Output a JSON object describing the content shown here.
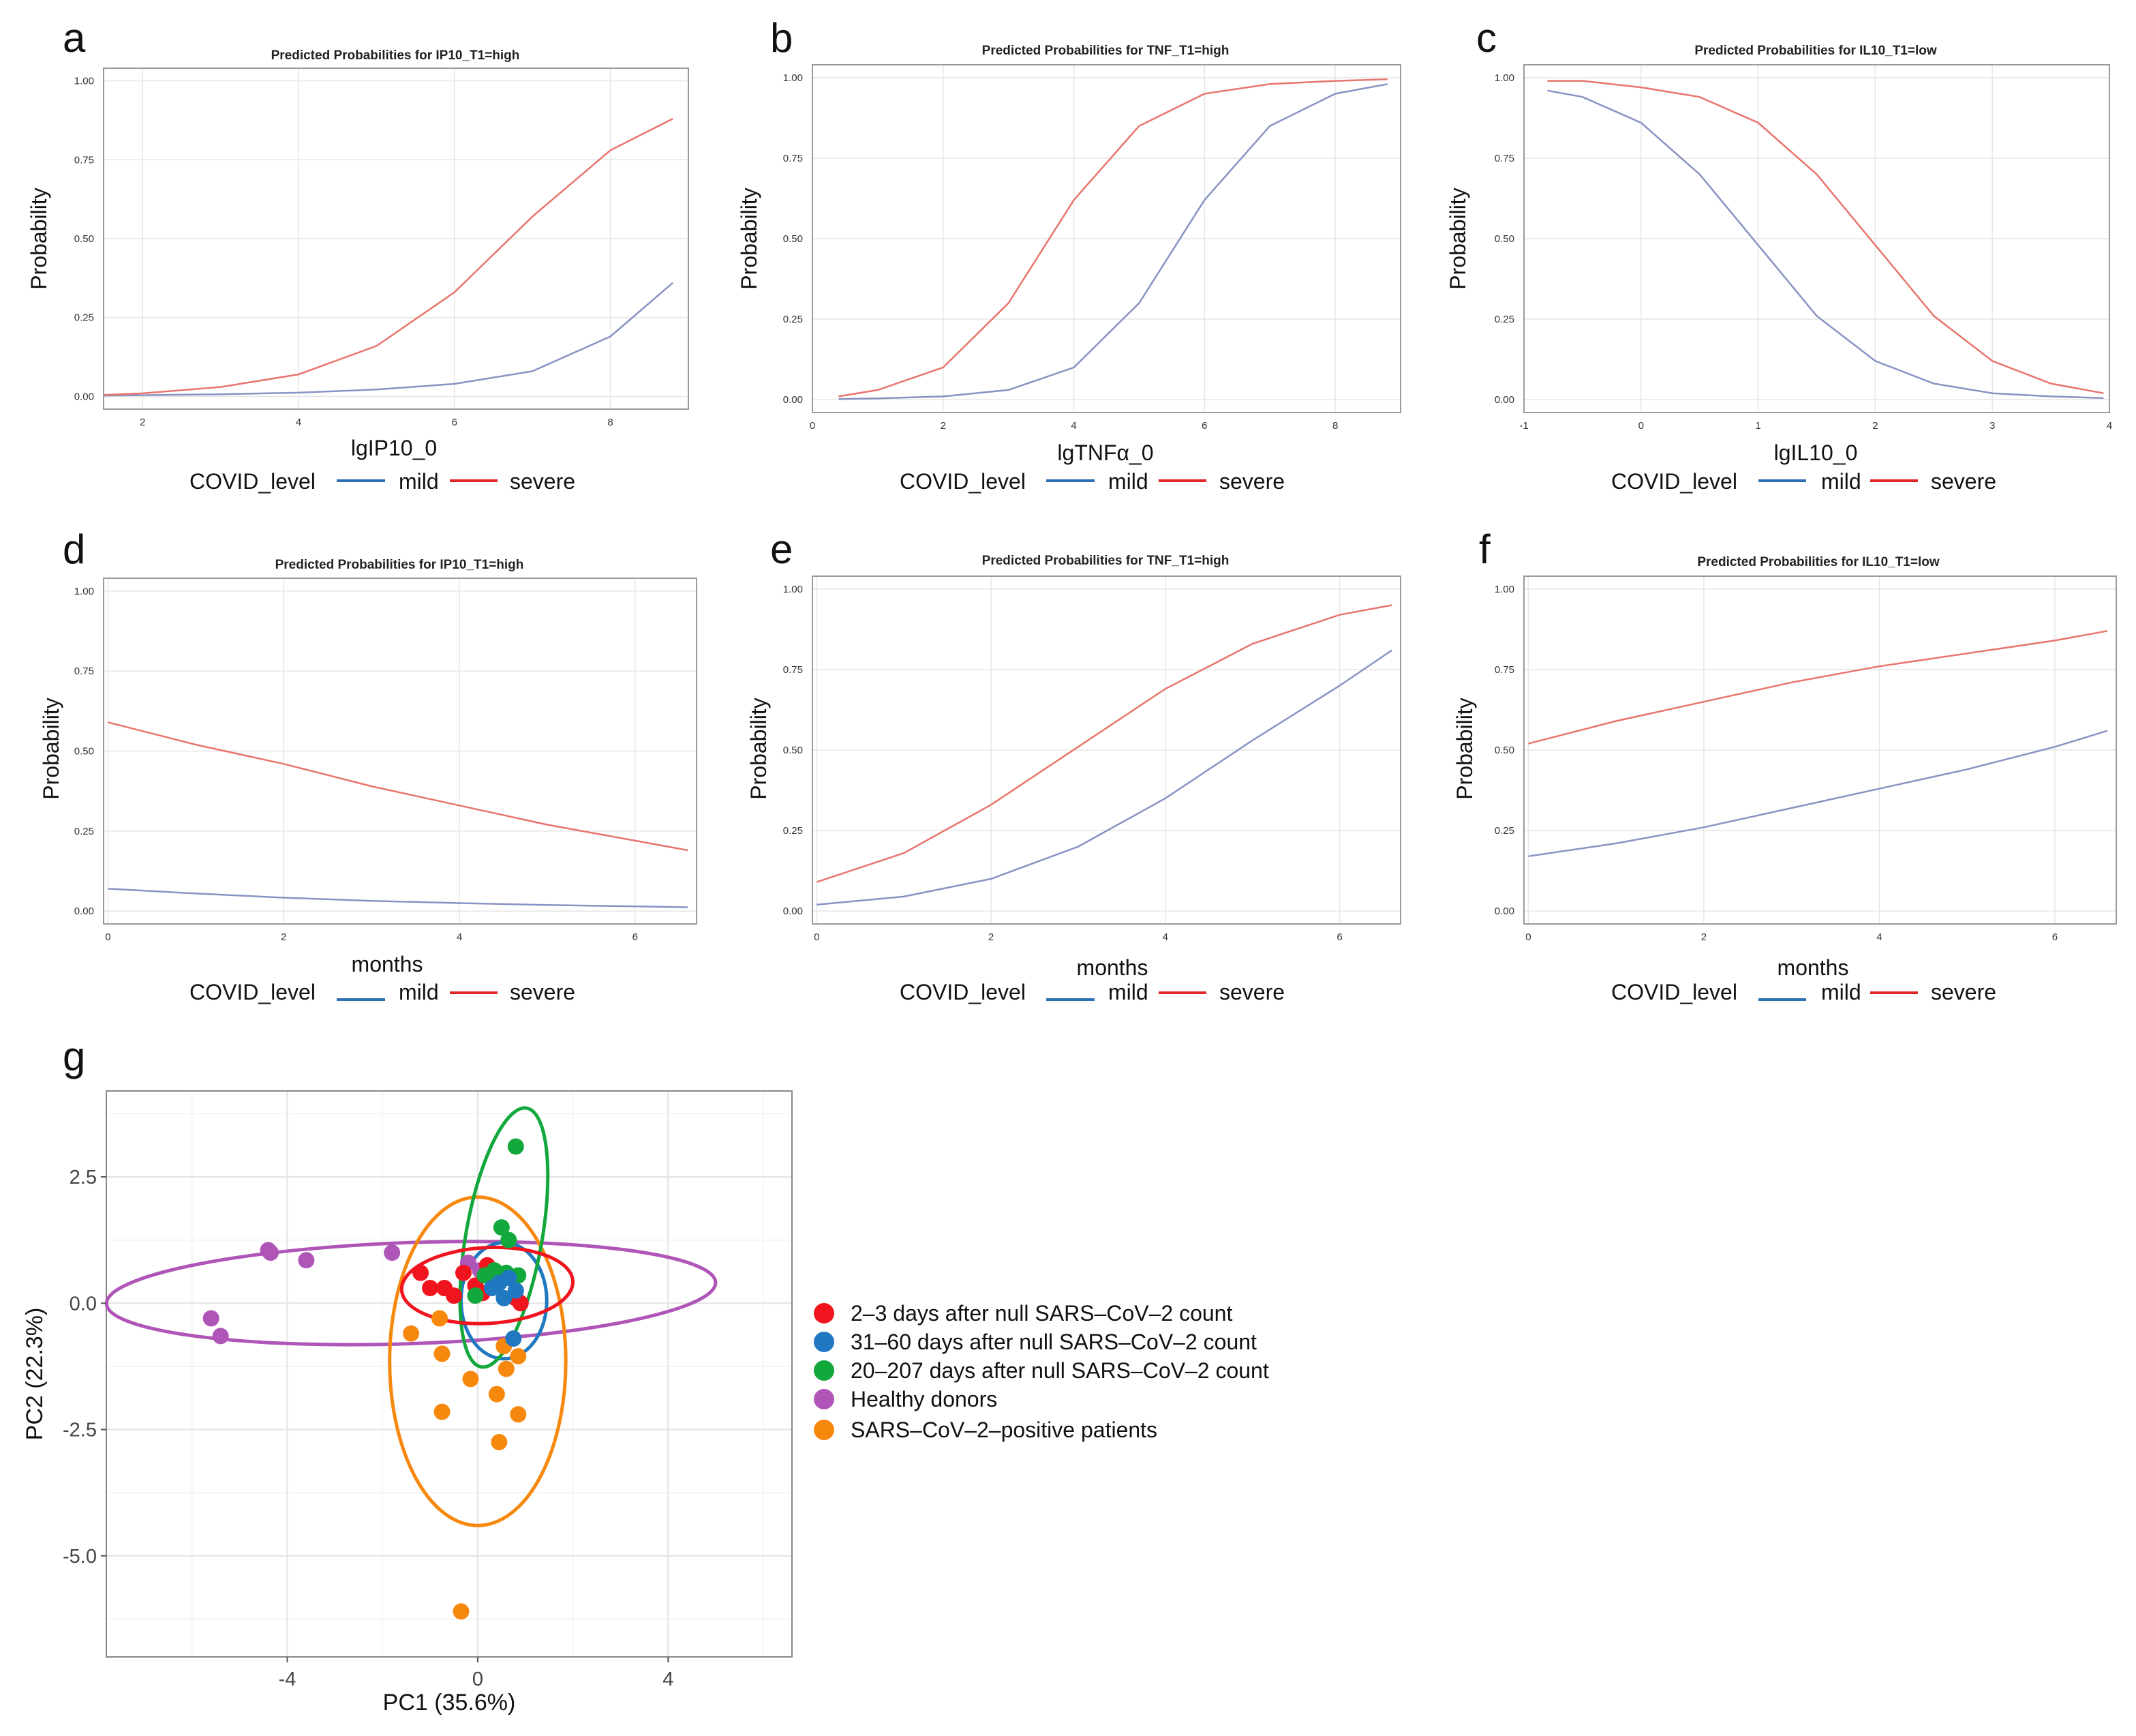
{
  "colors": {
    "mild": "#8893c4",
    "severe": "#e8756c",
    "legend_mild": "#2f6fb3",
    "legend_severe": "#e3262a",
    "grid": "#e6e6e6",
    "frame": "#9a9a9a"
  },
  "legend": {
    "title": "COVID_level",
    "mild": "mild",
    "severe": "severe"
  },
  "panels": [
    {
      "label": "a",
      "title": "Predicted Probabilities for IP10_T1=high",
      "xlabel": "lgIP10_0",
      "ylabel": "Probability",
      "yticks": [
        "0.00",
        "0.25",
        "0.50",
        "0.75",
        "1.00"
      ],
      "xticks": [
        "2",
        "4",
        "6",
        "8"
      ]
    },
    {
      "label": "b",
      "title": "Predicted Probabilities for TNF_T1=high",
      "xlabel": "lgTNFα_0",
      "ylabel": "Probability",
      "yticks": [
        "0.00",
        "0.25",
        "0.50",
        "0.75",
        "1.00"
      ],
      "xticks": [
        "0",
        "2",
        "4",
        "6",
        "8"
      ]
    },
    {
      "label": "c",
      "title": "Predicted Probabilities for IL10_T1=low",
      "xlabel": "lgIL10_0",
      "ylabel": "Probability",
      "yticks": [
        "0.00",
        "0.25",
        "0.50",
        "0.75",
        "1.00"
      ],
      "xticks": [
        "-1",
        "0",
        "1",
        "2",
        "3",
        "4"
      ]
    },
    {
      "label": "d",
      "title": "Predicted Probabilities for IP10_T1=high",
      "xlabel": "months",
      "ylabel": "Probability",
      "yticks": [
        "0.00",
        "0.25",
        "0.50",
        "0.75",
        "1.00"
      ],
      "xticks": [
        "0",
        "2",
        "4",
        "6"
      ]
    },
    {
      "label": "e",
      "title": "Predicted Probabilities for TNF_T1=high",
      "xlabel": "months",
      "ylabel": "Probability",
      "yticks": [
        "0.00",
        "0.25",
        "0.50",
        "0.75",
        "1.00"
      ],
      "xticks": [
        "0",
        "2",
        "4",
        "6"
      ]
    },
    {
      "label": "f",
      "title": "Predicted Probabilities for IL10_T1=low",
      "xlabel": "months",
      "ylabel": "Probability",
      "yticks": [
        "0.00",
        "0.25",
        "0.50",
        "0.75",
        "1.00"
      ],
      "xticks": [
        "0",
        "2",
        "4",
        "6"
      ]
    }
  ],
  "pca": {
    "label": "g",
    "xlabel": "PC1 (35.6%)",
    "ylabel": "PC2 (22.3%)",
    "xticks": [
      "-4",
      "0",
      "4"
    ],
    "yticks": [
      "2.5",
      "0.0",
      "-2.5",
      "-5.0"
    ],
    "legend": [
      "2–3  days  after  null  SARS–CoV–2  count",
      "31–60  days  after  null  SARS–CoV–2  count",
      "20–207  days  after  null  SARS–CoV–2  count",
      "Healthy  donors",
      "SARS–CoV–2–positive    patients"
    ],
    "colors": [
      "#f0141e",
      "#1f78c0",
      "#12a83c",
      "#b055b8",
      "#f7880e"
    ]
  },
  "chart_data": [
    {
      "type": "line",
      "title": "Predicted Probabilities for IP10_T1=high",
      "xlabel": "lgIP10_0",
      "ylabel": "Probability",
      "xlim": [
        1.5,
        9.0
      ],
      "ylim": [
        -0.04,
        1.04
      ],
      "series": [
        {
          "name": "mild",
          "x": [
            1.5,
            2,
            3,
            4,
            5,
            6,
            7,
            8,
            8.8
          ],
          "values": [
            0.003,
            0.004,
            0.007,
            0.012,
            0.022,
            0.04,
            0.08,
            0.19,
            0.36
          ]
        },
        {
          "name": "severe",
          "x": [
            1.5,
            2,
            3,
            4,
            5,
            6,
            7,
            8,
            8.8
          ],
          "values": [
            0.005,
            0.01,
            0.03,
            0.07,
            0.16,
            0.33,
            0.57,
            0.78,
            0.88
          ]
        }
      ]
    },
    {
      "type": "line",
      "title": "Predicted Probabilities for TNF_T1=high",
      "xlabel": "lgTNFα_0",
      "ylabel": "Probability",
      "xlim": [
        0,
        9.0
      ],
      "ylim": [
        -0.04,
        1.04
      ],
      "series": [
        {
          "name": "mild",
          "x": [
            0.4,
            1,
            2,
            3,
            4,
            5,
            6,
            7,
            8,
            8.8
          ],
          "values": [
            0.002,
            0.004,
            0.01,
            0.03,
            0.1,
            0.3,
            0.62,
            0.85,
            0.95,
            0.98
          ]
        },
        {
          "name": "severe",
          "x": [
            0.4,
            1,
            2,
            3,
            4,
            5,
            6,
            7,
            8,
            8.8
          ],
          "values": [
            0.01,
            0.03,
            0.1,
            0.3,
            0.62,
            0.85,
            0.95,
            0.98,
            0.99,
            0.995
          ]
        }
      ]
    },
    {
      "type": "line",
      "title": "Predicted Probabilities for IL10_T1=low",
      "xlabel": "lgIL10_0",
      "ylabel": "Probability",
      "xlim": [
        -1.0,
        4.0
      ],
      "ylim": [
        -0.04,
        1.04
      ],
      "series": [
        {
          "name": "mild",
          "x": [
            -0.8,
            -0.5,
            0,
            0.5,
            1,
            1.5,
            2,
            2.5,
            3,
            3.5,
            3.95
          ],
          "values": [
            0.96,
            0.94,
            0.86,
            0.7,
            0.48,
            0.26,
            0.12,
            0.05,
            0.02,
            0.01,
            0.005
          ]
        },
        {
          "name": "severe",
          "x": [
            -0.8,
            -0.5,
            0,
            0.5,
            1,
            1.5,
            2,
            2.5,
            3,
            3.5,
            3.95
          ],
          "values": [
            0.99,
            0.99,
            0.97,
            0.94,
            0.86,
            0.7,
            0.48,
            0.26,
            0.12,
            0.05,
            0.02
          ]
        }
      ]
    },
    {
      "type": "line",
      "title": "Predicted Probabilities for IP10_T1=high",
      "xlabel": "months",
      "ylabel": "Probability",
      "xlim": [
        -0.05,
        6.7
      ],
      "ylim": [
        -0.04,
        1.04
      ],
      "series": [
        {
          "name": "mild",
          "x": [
            0,
            1,
            2,
            3,
            4,
            5,
            6,
            6.6
          ],
          "values": [
            0.07,
            0.055,
            0.042,
            0.032,
            0.025,
            0.019,
            0.015,
            0.012
          ]
        },
        {
          "name": "severe",
          "x": [
            0,
            1,
            2,
            3,
            4,
            5,
            6,
            6.6
          ],
          "values": [
            0.59,
            0.52,
            0.46,
            0.39,
            0.33,
            0.27,
            0.22,
            0.19
          ]
        }
      ]
    },
    {
      "type": "line",
      "title": "Predicted Probabilities for TNF_T1=high",
      "xlabel": "months",
      "ylabel": "Probability",
      "xlim": [
        -0.05,
        6.7
      ],
      "ylim": [
        -0.04,
        1.04
      ],
      "series": [
        {
          "name": "mild",
          "x": [
            0,
            1,
            2,
            3,
            4,
            5,
            6,
            6.6
          ],
          "values": [
            0.02,
            0.045,
            0.1,
            0.2,
            0.35,
            0.53,
            0.7,
            0.81
          ]
        },
        {
          "name": "severe",
          "x": [
            0,
            1,
            2,
            3,
            4,
            5,
            6,
            6.6
          ],
          "values": [
            0.09,
            0.18,
            0.33,
            0.51,
            0.69,
            0.83,
            0.92,
            0.95
          ]
        }
      ]
    },
    {
      "type": "line",
      "title": "Predicted Probabilities for IL10_T1=low",
      "xlabel": "months",
      "ylabel": "Probability",
      "xlim": [
        -0.05,
        6.7
      ],
      "ylim": [
        -0.04,
        1.04
      ],
      "series": [
        {
          "name": "mild",
          "x": [
            0,
            1,
            2,
            3,
            4,
            5,
            6,
            6.6
          ],
          "values": [
            0.17,
            0.21,
            0.26,
            0.32,
            0.38,
            0.44,
            0.51,
            0.56
          ]
        },
        {
          "name": "severe",
          "x": [
            0,
            1,
            2,
            3,
            4,
            5,
            6,
            6.6
          ],
          "values": [
            0.52,
            0.59,
            0.65,
            0.71,
            0.76,
            0.8,
            0.84,
            0.87
          ]
        }
      ]
    },
    {
      "type": "scatter",
      "title": "",
      "xlabel": "PC1 (35.6%)",
      "ylabel": "PC2 (22.3%)",
      "xlim": [
        -7.8,
        6.6
      ],
      "ylim": [
        -7.0,
        4.2
      ],
      "series": [
        {
          "name": "2–3 days after null SARS–CoV–2 count",
          "points": [
            [
              -1.2,
              0.6
            ],
            [
              -1.0,
              0.3
            ],
            [
              -0.7,
              0.3
            ],
            [
              -0.5,
              0.15
            ],
            [
              -0.3,
              0.6
            ],
            [
              -0.05,
              0.35
            ],
            [
              0.1,
              0.2
            ],
            [
              0.2,
              0.75
            ],
            [
              0.4,
              0.45
            ],
            [
              0.8,
              0.1
            ],
            [
              0.9,
              0.0
            ]
          ],
          "ellipse": {
            "cx": 0.2,
            "cy": 0.35,
            "rx": 1.8,
            "ry": 0.75,
            "angle": -3
          }
        },
        {
          "name": "31–60 days after null SARS–CoV–2 count",
          "points": [
            [
              0.3,
              0.3
            ],
            [
              0.45,
              0.4
            ],
            [
              0.55,
              0.1
            ],
            [
              0.65,
              0.5
            ],
            [
              0.8,
              0.25
            ],
            [
              0.75,
              -0.7
            ]
          ],
          "ellipse": {
            "cx": 0.55,
            "cy": 0.05,
            "rx": 0.9,
            "ry": 1.15,
            "angle": 0
          }
        },
        {
          "name": "20–207 days after null SARS–CoV–2 count",
          "points": [
            [
              0.8,
              3.1
            ],
            [
              0.5,
              1.5
            ],
            [
              0.65,
              1.25
            ],
            [
              0.35,
              0.65
            ],
            [
              0.6,
              0.6
            ],
            [
              0.15,
              0.55
            ],
            [
              0.85,
              0.55
            ],
            [
              -0.05,
              0.15
            ]
          ],
          "ellipse": {
            "cx": 0.55,
            "cy": 1.3,
            "rx": 0.8,
            "ry": 2.6,
            "angle": 10
          }
        },
        {
          "name": "Healthy donors",
          "points": [
            [
              -4.4,
              1.05
            ],
            [
              -4.35,
              1.0
            ],
            [
              -3.6,
              0.85
            ],
            [
              -1.8,
              1.0
            ],
            [
              -5.6,
              -0.3
            ],
            [
              -5.4,
              -0.65
            ],
            [
              -0.2,
              0.8
            ],
            [
              0.05,
              0.65
            ]
          ],
          "ellipse": {
            "cx": -1.4,
            "cy": 0.2,
            "rx": 6.4,
            "ry": 1.0,
            "angle": -2
          }
        },
        {
          "name": "SARS–CoV–2–positive patients",
          "points": [
            [
              -1.4,
              -0.6
            ],
            [
              -0.8,
              -0.3
            ],
            [
              -0.75,
              -1.0
            ],
            [
              -0.15,
              -1.5
            ],
            [
              0.4,
              -1.8
            ],
            [
              0.6,
              -1.3
            ],
            [
              0.85,
              -1.05
            ],
            [
              0.55,
              -0.85
            ],
            [
              -0.75,
              -2.15
            ],
            [
              0.85,
              -2.2
            ],
            [
              0.45,
              -2.75
            ],
            [
              -0.35,
              -6.1
            ]
          ],
          "ellipse": {
            "cx": 0.0,
            "cy": -1.15,
            "rx": 1.85,
            "ry": 3.25,
            "angle": 0
          }
        }
      ]
    }
  ]
}
